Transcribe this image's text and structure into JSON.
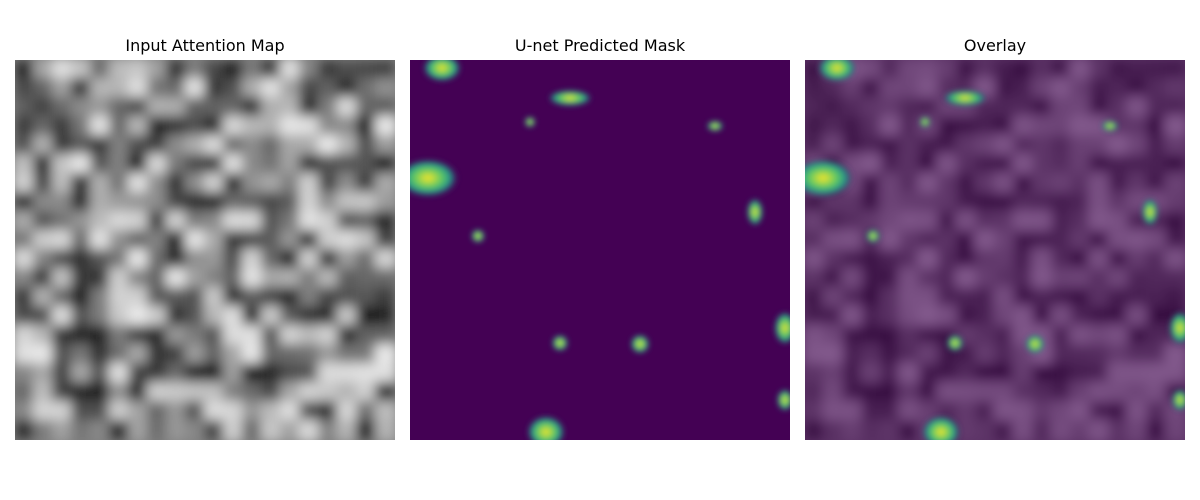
{
  "figure": {
    "panels": [
      {
        "title": "Input Attention Map",
        "colormap": "gray"
      },
      {
        "title": "U-net Predicted Mask",
        "colormap": "viridis"
      },
      {
        "title": "Overlay",
        "colormap": "gray+viridis overlay"
      }
    ]
  },
  "colors": {
    "viridis_low": "#440154",
    "viridis_mid": "#21918c",
    "viridis_high": "#fde725",
    "overlay_tint": "#440154"
  }
}
